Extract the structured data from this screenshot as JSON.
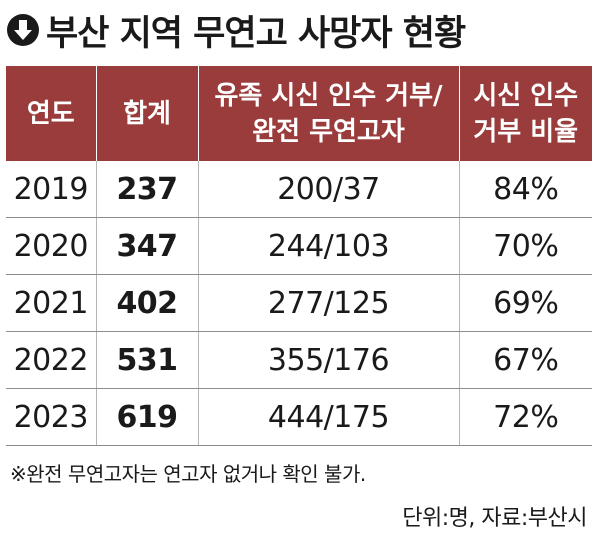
{
  "title": "부산 지역 무연고 사망자 현황",
  "title_icon": "down-arrow-circle-icon",
  "colors": {
    "header_bg": "#9a3c3b",
    "header_text": "#ffffff",
    "row_rule": "#8c8c8c"
  },
  "chart_data": {
    "type": "table",
    "title": "부산 지역 무연고 사망자 현황",
    "columns": [
      [
        "연도"
      ],
      [
        "합계"
      ],
      [
        "유족 시신 인수 거부/",
        "완전 무연고자"
      ],
      [
        "시신 인수",
        "거부 비율"
      ]
    ],
    "rows": [
      {
        "year": "2019",
        "total": "237",
        "split": "200/37",
        "rate": "84%"
      },
      {
        "year": "2020",
        "total": "347",
        "split": "244/103",
        "rate": "70%"
      },
      {
        "year": "2021",
        "total": "402",
        "split": "277/125",
        "rate": "69%"
      },
      {
        "year": "2022",
        "total": "531",
        "split": "355/176",
        "rate": "67%"
      },
      {
        "year": "2023",
        "total": "619",
        "split": "444/175",
        "rate": "72%"
      }
    ],
    "note": "※완전 무연고자는 연고자 없거나 확인 불가.",
    "source": "단위:명, 자료:부산시"
  }
}
